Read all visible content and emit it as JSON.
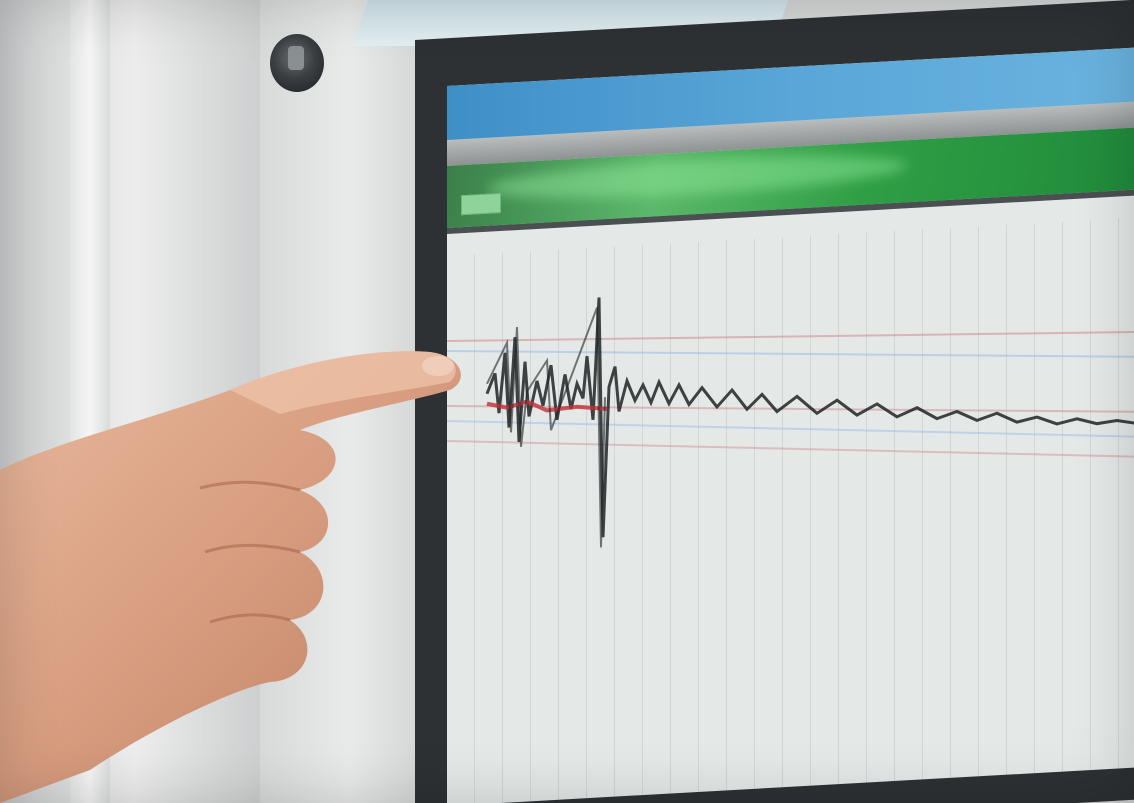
{
  "screen": {
    "window_title": "",
    "status_text": "",
    "green_button_label": ""
  },
  "colors": {
    "title_bar": "#4a9bd0",
    "header_green": "#2f9e45",
    "trace": "#1f2324",
    "trace_red": "#c0303a",
    "trace_blue": "#5b8fd6"
  }
}
